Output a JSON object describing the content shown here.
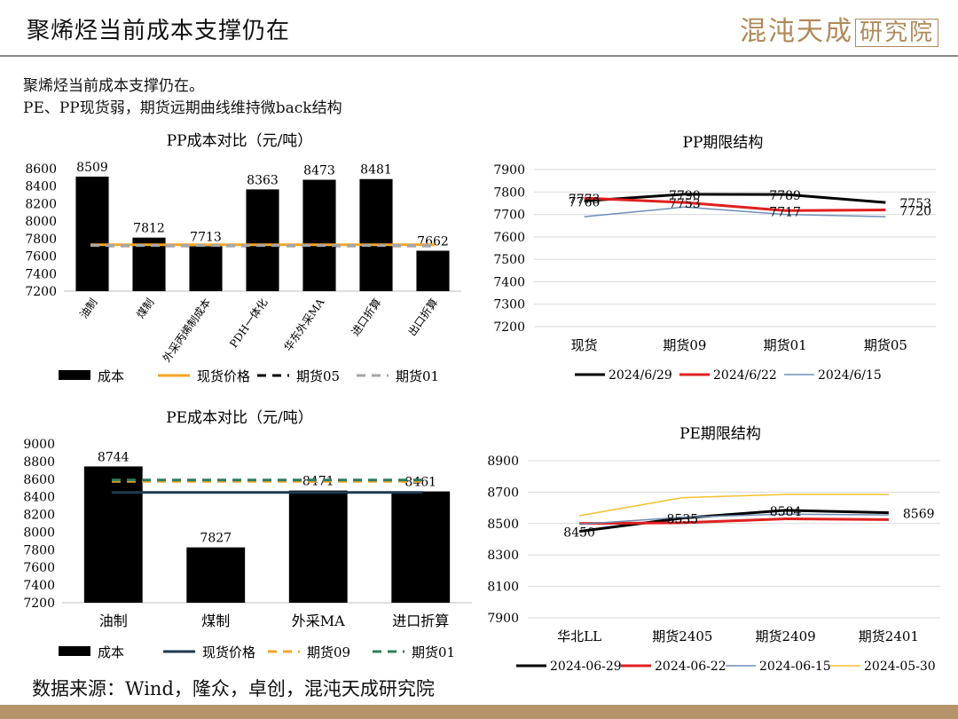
{
  "header": {
    "title": "聚烯烃当前成本支撑仍在",
    "logo_main": "混沌天成",
    "logo_boxed": "研究院"
  },
  "subtitle": {
    "line1": "聚烯烃当前成本支撑仍在。",
    "line2": "PE、PP现货弱，期货远期曲线维持微back结构"
  },
  "footer": {
    "source": "数据来源：Wind，隆众，卓创，混沌天成研究院"
  },
  "colors": {
    "accent": "#b6946a",
    "black": "#000000",
    "orange": "#f5a623",
    "gray": "#a6a6a6",
    "red": "#e02020",
    "steel": "#6f8fb7",
    "navy": "#1f3a4f",
    "green": "#2e7d5b",
    "yellow": "#f2c12e"
  },
  "chart_data": [
    {
      "type": "bar",
      "title": "PP成本对比（元/吨）",
      "categories": [
        "油制",
        "煤制",
        "外采丙烯制成本",
        "PDH一体化",
        "华东外采MA",
        "进口折算",
        "出口折算"
      ],
      "series": [
        {
          "name": "成本",
          "values": [
            8509,
            7812,
            7713,
            8363,
            8473,
            8481,
            7662
          ]
        }
      ],
      "reference_lines": [
        {
          "name": "现货价格",
          "value": 7730,
          "style": "solid",
          "color": "#f5a623"
        },
        {
          "name": "期货05",
          "value": 7720,
          "style": "dashed",
          "color": "#000000"
        },
        {
          "name": "期货01",
          "value": 7722,
          "style": "dashed",
          "color": "#a6a6a6"
        }
      ],
      "ylim": [
        7200,
        8600
      ],
      "yticks": [
        7200,
        7400,
        7600,
        7800,
        8000,
        8200,
        8400,
        8600
      ],
      "grid": false,
      "legend": "bottom"
    },
    {
      "type": "line",
      "title": "PP期限结构",
      "categories": [
        "现货",
        "期货09",
        "期货01",
        "期货05"
      ],
      "series": [
        {
          "name": "2024/6/29",
          "values": [
            7760,
            7790,
            7789,
            7753
          ],
          "color": "#000000",
          "width": 3
        },
        {
          "name": "2024/6/22",
          "values": [
            7773,
            7753,
            7717,
            7720
          ],
          "color": "#e02020",
          "width": 3
        },
        {
          "name": "2024/6/15",
          "values": [
            7690,
            7733,
            7700,
            7690
          ],
          "color": "#6f8fb7",
          "width": 1.5
        }
      ],
      "data_labels": [
        {
          "series": 0,
          "index": 0,
          "text": "7760"
        },
        {
          "series": 1,
          "index": 0,
          "text": "7773"
        },
        {
          "series": 0,
          "index": 1,
          "text": "7790"
        },
        {
          "series": 1,
          "index": 1,
          "text": "7753"
        },
        {
          "series": 0,
          "index": 2,
          "text": "7789"
        },
        {
          "series": 1,
          "index": 2,
          "text": "7717"
        },
        {
          "series": 0,
          "index": 3,
          "text": "7753"
        },
        {
          "series": 1,
          "index": 3,
          "text": "7720"
        }
      ],
      "ylim": [
        7200,
        7900
      ],
      "yticks": [
        7200,
        7300,
        7400,
        7500,
        7600,
        7700,
        7800,
        7900
      ],
      "grid": true,
      "legend": "bottom"
    },
    {
      "type": "bar",
      "title": "PE成本对比（元/吨）",
      "categories": [
        "油制",
        "煤制",
        "外采MA",
        "进口折算"
      ],
      "series": [
        {
          "name": "成本",
          "values": [
            8744,
            7827,
            8471,
            8461
          ]
        }
      ],
      "reference_lines": [
        {
          "name": "现货价格",
          "value": 8450,
          "style": "solid",
          "color": "#1f3a4f"
        },
        {
          "name": "期货09",
          "value": 8575,
          "style": "dashed",
          "color": "#f5a623"
        },
        {
          "name": "期货01",
          "value": 8590,
          "style": "dashed",
          "color": "#2e7d5b"
        }
      ],
      "ylim": [
        7200,
        9000
      ],
      "yticks": [
        7200,
        7400,
        7600,
        7800,
        8000,
        8200,
        8400,
        8600,
        8800,
        9000
      ],
      "grid": false,
      "legend": "bottom"
    },
    {
      "type": "line",
      "title": "PE期限结构",
      "categories": [
        "华北LL",
        "期货2405",
        "期货2409",
        "期货2401"
      ],
      "series": [
        {
          "name": "2024-06-29",
          "values": [
            8450,
            8535,
            8584,
            8569
          ],
          "color": "#000000",
          "width": 3
        },
        {
          "name": "2024-06-22",
          "values": [
            8500,
            8505,
            8530,
            8525
          ],
          "color": "#e02020",
          "width": 3
        },
        {
          "name": "2024-06-15",
          "values": [
            8495,
            8540,
            8560,
            8555
          ],
          "color": "#6f8fb7",
          "width": 1.5
        },
        {
          "name": "2024-05-30",
          "values": [
            8550,
            8665,
            8685,
            8685
          ],
          "color": "#f2c12e",
          "width": 1.5
        }
      ],
      "data_labels": [
        {
          "series": 0,
          "index": 0,
          "text": "8450"
        },
        {
          "series": 0,
          "index": 1,
          "text": "8535"
        },
        {
          "series": 0,
          "index": 2,
          "text": "8584"
        },
        {
          "series": 0,
          "index": 3,
          "text": "8569"
        }
      ],
      "ylim": [
        7900,
        8900
      ],
      "yticks": [
        7900,
        8100,
        8300,
        8500,
        8700,
        8900
      ],
      "grid": true,
      "legend": "bottom"
    }
  ]
}
